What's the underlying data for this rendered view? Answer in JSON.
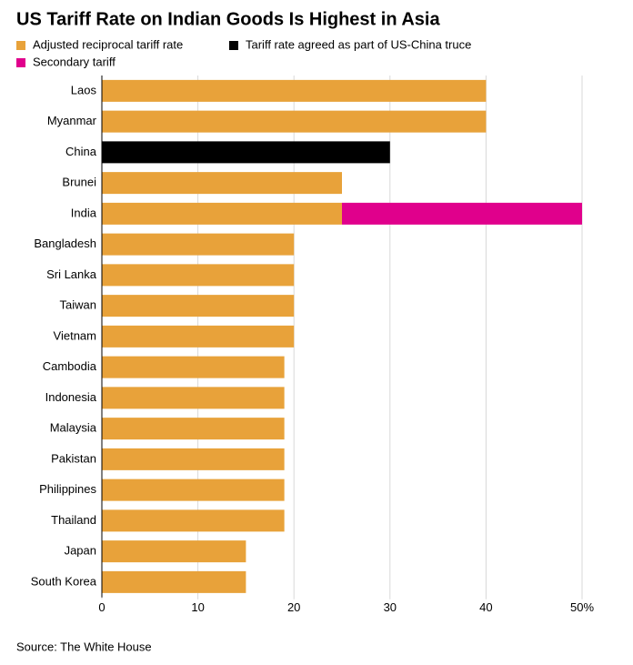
{
  "chart_data": {
    "type": "stacked-barh",
    "title": "US Tariff Rate on Indian Goods Is Highest in Asia",
    "source": "Source: The White House",
    "categories": [
      "Laos",
      "Myanmar",
      "China",
      "Brunei",
      "India",
      "Bangladesh",
      "Sri Lanka",
      "Taiwan",
      "Vietnam",
      "Cambodia",
      "Indonesia",
      "Malaysia",
      "Pakistan",
      "Philippines",
      "Thailand",
      "Japan",
      "South Korea"
    ],
    "series": [
      {
        "name": "Adjusted reciprocal tariff rate",
        "color": "#e8a23a",
        "values": [
          40,
          40,
          null,
          25,
          25,
          20,
          20,
          20,
          20,
          19,
          19,
          19,
          19,
          19,
          19,
          15,
          15
        ]
      },
      {
        "name": "Tariff rate agreed as part of US-China truce",
        "color": "#000000",
        "values": [
          null,
          null,
          30,
          null,
          null,
          null,
          null,
          null,
          null,
          null,
          null,
          null,
          null,
          null,
          null,
          null,
          null
        ]
      },
      {
        "name": "Secondary tariff",
        "color": "#e0008c",
        "values": [
          null,
          null,
          null,
          null,
          25,
          null,
          null,
          null,
          null,
          null,
          null,
          null,
          null,
          null,
          null,
          null,
          null
        ]
      }
    ],
    "xlim": [
      0,
      50
    ],
    "xticks": [
      0,
      10,
      20,
      30,
      40,
      {
        "value": 50,
        "label": "50%"
      }
    ],
    "grid": true
  }
}
